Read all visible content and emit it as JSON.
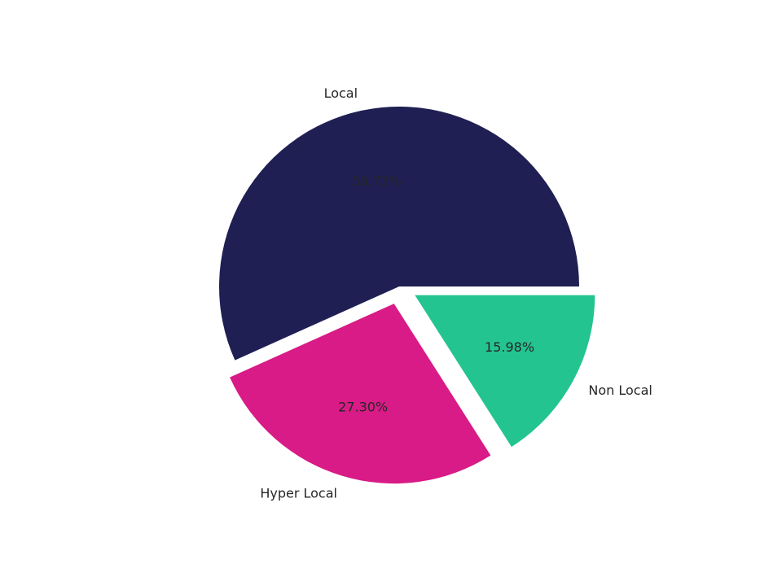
{
  "chart_data": {
    "type": "pie",
    "title": "",
    "categories": [
      "Local",
      "Hyper Local",
      "Non Local"
    ],
    "values": [
      56.72,
      27.3,
      15.98
    ],
    "value_labels": [
      "56.72%",
      "27.30%",
      "15.98%"
    ],
    "colors": [
      "#1f1f54",
      "#d81b86",
      "#24c490"
    ],
    "exploded": [
      false,
      true,
      true
    ],
    "start_angle_deg": 0,
    "direction": "counterclockwise",
    "legend": "none"
  }
}
